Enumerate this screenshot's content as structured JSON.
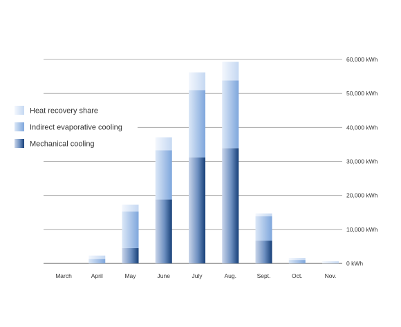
{
  "chart_data": {
    "type": "bar",
    "stacked": true,
    "categories": [
      "March",
      "April",
      "May",
      "June",
      "July",
      "Aug.",
      "Sept.",
      "Oct.",
      "Nov."
    ],
    "series": [
      {
        "name": "Mechanical cooling",
        "color": "#1f4f8a",
        "values": [
          0,
          0,
          4500,
          18800,
          31200,
          33900,
          6700,
          0,
          0
        ]
      },
      {
        "name": "Indirect evaporative cooling",
        "color": "#8fb2e3",
        "values": [
          0,
          1300,
          10800,
          14500,
          19800,
          19900,
          7200,
          1000,
          0
        ]
      },
      {
        "name": "Heat recovery share",
        "color": "#d4e2f5",
        "values": [
          0,
          1000,
          2000,
          3800,
          5200,
          5500,
          800,
          600,
          600
        ]
      }
    ],
    "ylim": [
      0,
      60000
    ],
    "yticks": [
      "0 kWh",
      "10,000 kWh",
      "20,000 kWh",
      "30,000 kWh",
      "40,000 kWh",
      "50,000 kWh",
      "60,000 kWh"
    ],
    "ytick_values": [
      0,
      10000,
      20000,
      30000,
      40000,
      50000,
      60000
    ],
    "grid": true,
    "legend_position": "left",
    "legend_order": [
      "Heat recovery share",
      "Indirect evaporative cooling",
      "Mechanical cooling"
    ]
  }
}
